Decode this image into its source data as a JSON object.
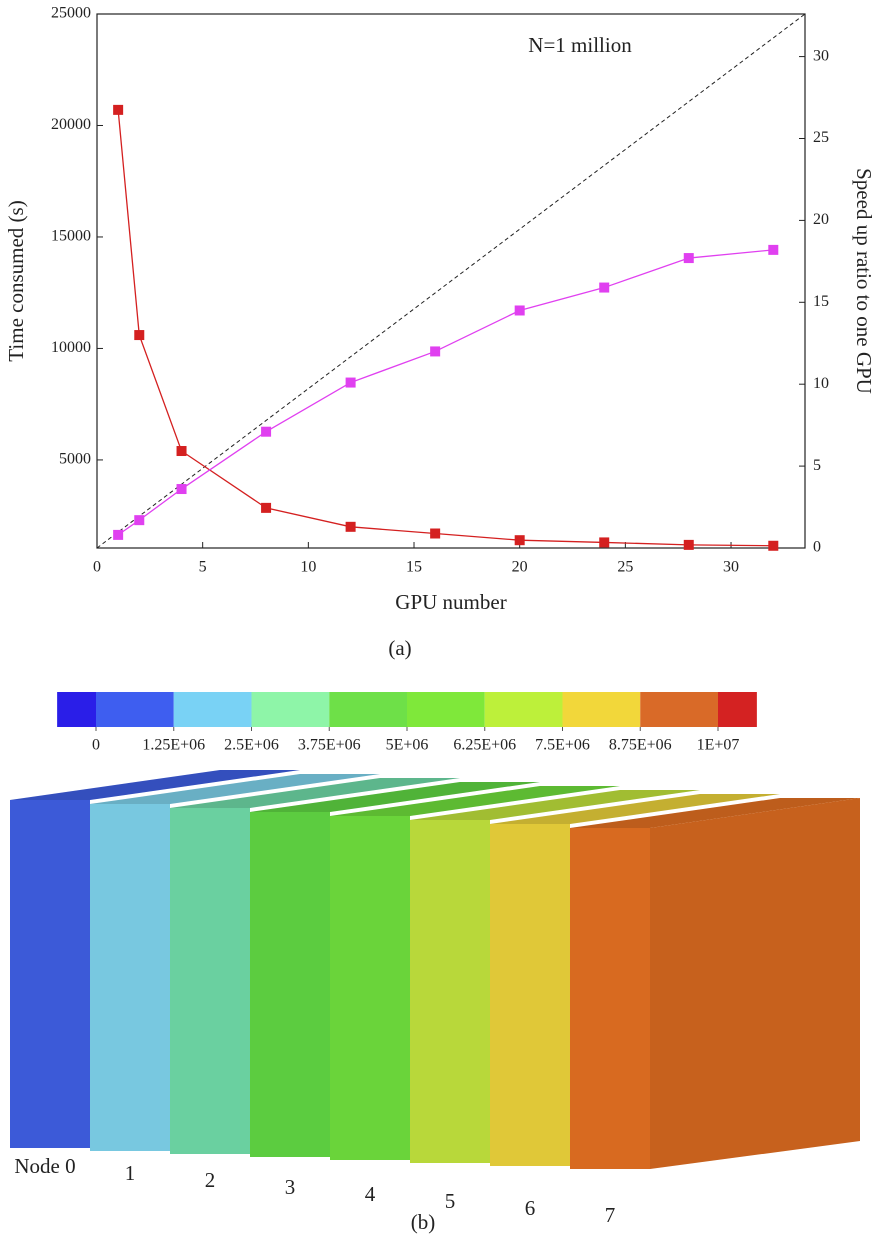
{
  "chart_data": {
    "type": "line",
    "annotation": "N=1 million",
    "caption": "(a)",
    "xlabel": "GPU number",
    "ylabel": "Time consumed (s)",
    "y2label": "Speed up ratio to one GPU",
    "x": [
      1,
      2,
      4,
      8,
      12,
      16,
      20,
      24,
      28,
      32
    ],
    "xlim": [
      0,
      33.5
    ],
    "xticks": [
      0,
      5,
      10,
      15,
      20,
      25,
      30
    ],
    "ylim": [
      1050,
      25000
    ],
    "yticks": [
      5000,
      10000,
      15000,
      20000,
      25000
    ],
    "y2lim": [
      0,
      32.6
    ],
    "y2ticks": [
      0,
      5,
      10,
      15,
      20,
      25,
      30
    ],
    "series": [
      {
        "color": "#d42020",
        "values": [
          20700,
          10600,
          5400,
          2850,
          2000,
          1700,
          1400,
          1300,
          1190,
          1150
        ]
      },
      {
        "color": "#e040f0",
        "axis": "y2",
        "values": [
          0.8,
          1.7,
          3.6,
          7.1,
          10.1,
          12.0,
          14.5,
          15.9,
          17.7,
          18.2
        ]
      }
    ]
  },
  "figure_b": {
    "caption": "(b)",
    "colorbar": {
      "colors": [
        "#2a1ee8",
        "#3e5ef0",
        "#79d2f5",
        "#8ef5a8",
        "#6ee048",
        "#7fe83a",
        "#bdf03a",
        "#f2d73a",
        "#d96a28",
        "#d42222"
      ],
      "ticks": [
        {
          "value": 0,
          "label": "0"
        },
        {
          "value": 1250000,
          "label": "1.25E+06"
        },
        {
          "value": 2500000,
          "label": "2.5E+06"
        },
        {
          "value": 3750000,
          "label": "3.75E+06"
        },
        {
          "value": 5000000,
          "label": "5E+06"
        },
        {
          "value": 6250000,
          "label": "6.25E+06"
        },
        {
          "value": 7500000,
          "label": "7.5E+06"
        },
        {
          "value": 8750000,
          "label": "8.75E+06"
        },
        {
          "value": 10000000,
          "label": "1E+07"
        }
      ]
    },
    "nodes": [
      {
        "label": "Node 0",
        "color": "#3c5ad8"
      },
      {
        "label": "1",
        "color": "#78c8e0"
      },
      {
        "label": "2",
        "color": "#6ad0a0"
      },
      {
        "label": "3",
        "color": "#5ccc40"
      },
      {
        "label": "4",
        "color": "#6ad43a"
      },
      {
        "label": "5",
        "color": "#b8d83a"
      },
      {
        "label": "6",
        "color": "#e0c838"
      },
      {
        "label": "7",
        "color": "#d86a20"
      }
    ]
  }
}
